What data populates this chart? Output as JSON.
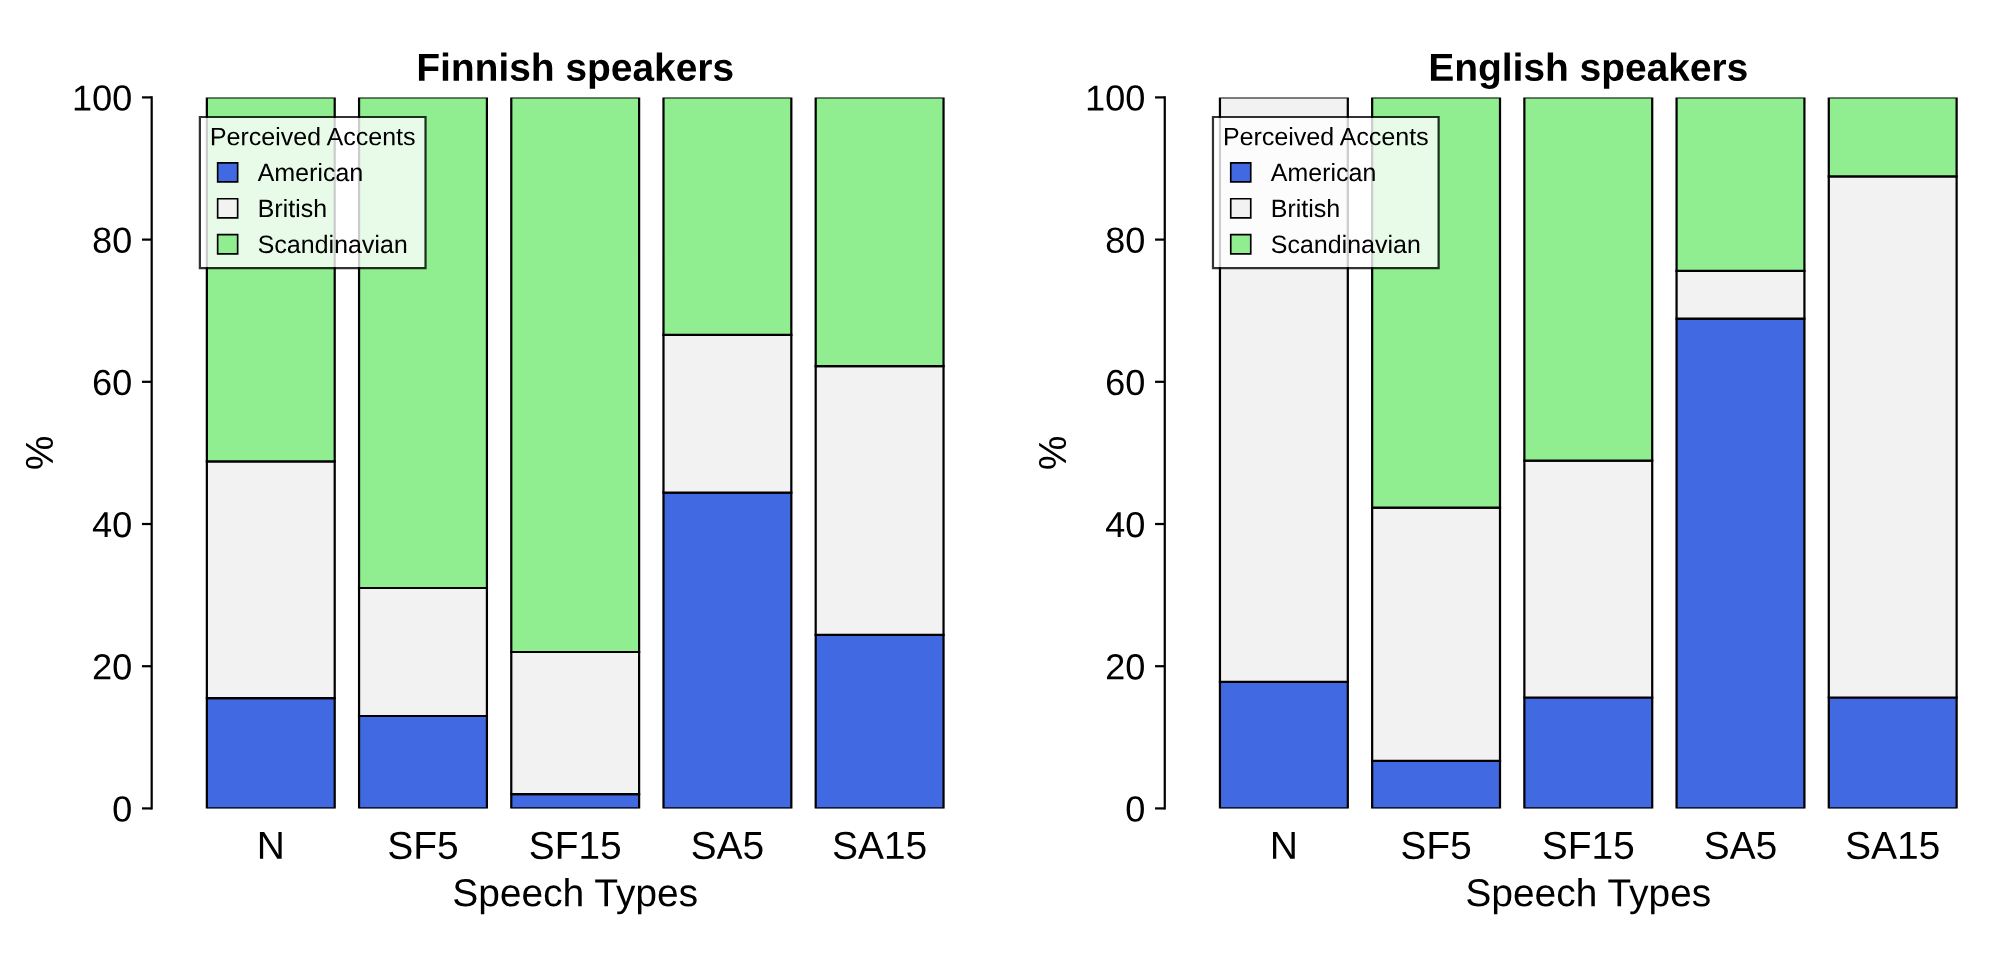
{
  "chart_data": [
    {
      "type": "bar",
      "stacked": true,
      "title": "Finnish speakers",
      "xlabel": "Speech Types",
      "ylabel": "%",
      "categories": [
        "N",
        "SF5",
        "SF15",
        "SA5",
        "SA15"
      ],
      "ylim": [
        0,
        100
      ],
      "yticks": [
        0,
        20,
        40,
        60,
        80,
        100
      ],
      "legend": "top left",
      "legend_title": "Perceived Accents",
      "grid": false,
      "series": [
        {
          "name": "American",
          "color": "#4169e1",
          "values": [
            15.5,
            13.0,
            2.0,
            44.4,
            24.4
          ]
        },
        {
          "name": "British",
          "color": "#f2f2f2",
          "values": [
            33.3,
            18.0,
            20.0,
            22.2,
            37.8
          ]
        },
        {
          "name": "Scandinavian",
          "color": "#90ee90",
          "values": [
            51.2,
            69.0,
            78.0,
            33.4,
            37.8
          ]
        }
      ]
    },
    {
      "type": "bar",
      "stacked": true,
      "title": "English speakers",
      "xlabel": "Speech Types",
      "ylabel": "%",
      "categories": [
        "N",
        "SF5",
        "SF15",
        "SA5",
        "SA15"
      ],
      "ylim": [
        0,
        100
      ],
      "yticks": [
        0,
        20,
        40,
        60,
        80,
        100
      ],
      "legend": "top left",
      "legend_title": "Perceived Accents",
      "grid": false,
      "series": [
        {
          "name": "American",
          "color": "#4169e1",
          "values": [
            17.8,
            6.7,
            15.6,
            68.9,
            15.6
          ]
        },
        {
          "name": "British",
          "color": "#f2f2f2",
          "values": [
            82.2,
            35.6,
            33.3,
            6.7,
            73.3
          ]
        },
        {
          "name": "Scandinavian",
          "color": "#90ee90",
          "values": [
            null,
            57.7,
            51.1,
            24.4,
            11.1
          ]
        }
      ]
    }
  ]
}
